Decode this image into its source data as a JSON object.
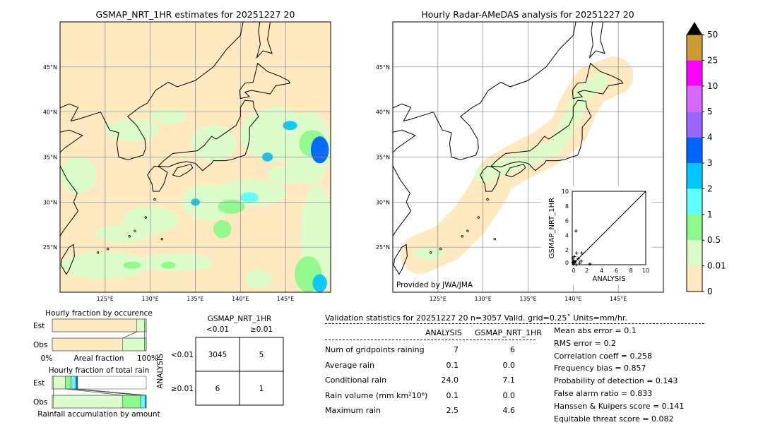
{
  "left_map": {
    "title": "GSMAP_NRT_1HR estimates for 20251227 20"
  },
  "right_map": {
    "title": "Hourly Radar-AMeDAS analysis for 20251227 20",
    "credit": "Provided by JWA/JMA"
  },
  "chart_data": [
    {
      "type": "heatmap",
      "name": "left_map",
      "xlim": [
        120,
        150
      ],
      "ylim": [
        20,
        50
      ],
      "xticks": [
        "125°E",
        "130°E",
        "135°E",
        "140°E",
        "145°E"
      ],
      "xtick_values": [
        125,
        130,
        135,
        140,
        145
      ],
      "yticks": [
        "45°N",
        "40°N",
        "35°N",
        "30°N",
        "25°N"
      ],
      "ytick_values": [
        45,
        40,
        35,
        30,
        25
      ],
      "grid": true
    },
    {
      "type": "heatmap",
      "name": "right_map",
      "xlim": [
        120,
        150
      ],
      "ylim": [
        20,
        50
      ],
      "xticks": [
        "125°E",
        "130°E",
        "135°E",
        "140°E",
        "145°E"
      ],
      "xtick_values": [
        125,
        130,
        135,
        140,
        145
      ],
      "yticks": [
        "45°N",
        "40°N",
        "35°N",
        "30°N",
        "25°N"
      ],
      "ytick_values": [
        45,
        40,
        35,
        30,
        25
      ],
      "grid": true
    },
    {
      "type": "scatter",
      "name": "inset",
      "xlabel": "ANALYSIS",
      "ylabel": "GSMAP_NRT_1HR",
      "xlim": [
        0,
        10
      ],
      "ylim": [
        0,
        10
      ],
      "xticks": [
        "0",
        "2",
        "4",
        "6",
        "8",
        "10"
      ],
      "yticks": [
        "0",
        "2",
        "4",
        "6",
        "8",
        "10"
      ],
      "points": [
        [
          0.5,
          4.6
        ],
        [
          1.3,
          1.6
        ],
        [
          0.6,
          1.6
        ],
        [
          0.3,
          1.1
        ],
        [
          0.1,
          0.9
        ],
        [
          0.8,
          0.8
        ],
        [
          0.2,
          0.5
        ],
        [
          0.4,
          0.4
        ],
        [
          1.0,
          0.2
        ],
        [
          2.4,
          0.1
        ],
        [
          0.2,
          0.1
        ],
        [
          0.6,
          0.0
        ],
        [
          0.1,
          0.3
        ],
        [
          1.2,
          0.5
        ]
      ]
    },
    {
      "type": "bar",
      "name": "occurrence",
      "title": "Hourly fraction by occurence",
      "xlabel": "Areal fraction",
      "xticks": [
        "0%",
        "100%"
      ],
      "categories": [
        "Est",
        "Obs"
      ],
      "segments": {
        "Est": [
          0.9,
          0.08,
          0.02
        ],
        "Obs": [
          0.75,
          0.23,
          0.02
        ]
      }
    },
    {
      "type": "bar",
      "name": "total_rain",
      "title": "Hourly fraction of total rain",
      "xlabel": "Rainfall accumulation by amount",
      "categories": [
        "Est",
        "Obs"
      ],
      "segments": {
        "Est": [
          0.01,
          0.13,
          0.06,
          0.05,
          0.02
        ],
        "Obs": [
          0.01,
          0.74,
          0.19,
          0.05,
          0.01
        ]
      }
    },
    {
      "type": "table",
      "name": "contingency",
      "title": "GSMAP_NRT_1HR",
      "col_labels": [
        "<0.01",
        "≥0.01"
      ],
      "row_title": "ANALYSIS",
      "row_labels": [
        "<0.01",
        "≥0.01"
      ],
      "cells": [
        [
          "3045",
          "5"
        ],
        [
          "6",
          "1"
        ]
      ]
    }
  ],
  "colorbar": {
    "levels": [
      "0",
      "0.01",
      "0.5",
      "1",
      "2",
      "3",
      "4",
      "5",
      "10",
      "25",
      "50"
    ],
    "colors": [
      "#fee9c0",
      "#dafdc9",
      "#8ef98b",
      "#5ffefe",
      "#00c8fe",
      "#0064fe",
      "#9966fe",
      "#da66fe",
      "#fe00fe",
      "#cc9933"
    ],
    "extend_color": "#000000"
  },
  "stats": {
    "header": "Validation statistics for 20251227 20  n=3057 Valid. grid=0.25˚ Units=mm/hr.",
    "col_analysis": "ANALYSIS",
    "col_gsmap": "GSMAP_NRT_1HR",
    "rows": [
      {
        "label": "Num of gridpoints raining",
        "a": "7",
        "g": "6"
      },
      {
        "label": "Average rain",
        "a": "0.1",
        "g": "0.0"
      },
      {
        "label": "Conditional rain",
        "a": "24.0",
        "g": "7.1"
      },
      {
        "label": "Rain volume (mm km²10⁶)",
        "a": "0.1",
        "g": "0.0"
      },
      {
        "label": "Maximum rain",
        "a": "2.5",
        "g": "4.6"
      }
    ],
    "scores": [
      "Mean abs error =    0.1",
      "RMS error =    0.2",
      "Correlation coeff =  0.258",
      "Frequency bias =  0.857",
      "Probability of detection =  0.143",
      "False alarm ratio =  0.833",
      "Hanssen & Kuipers score =  0.141",
      "Equitable threat score =  0.082"
    ]
  }
}
